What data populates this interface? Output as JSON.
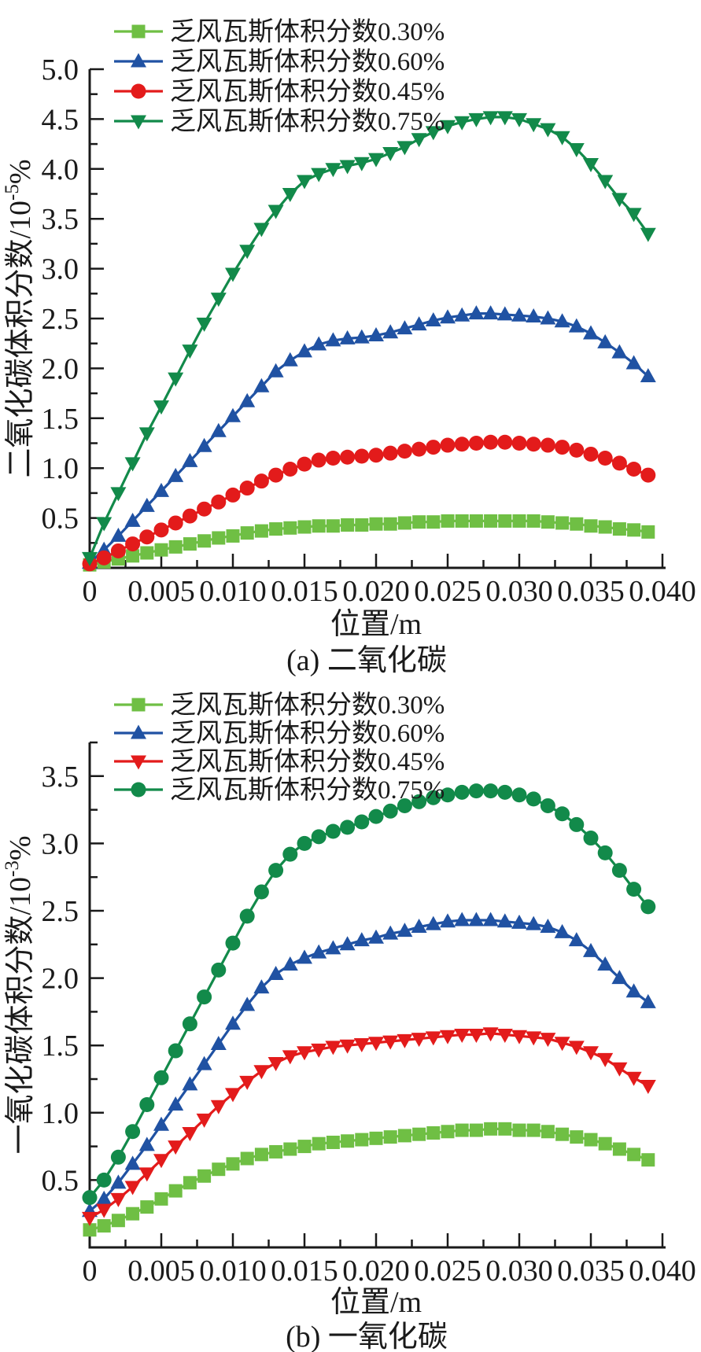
{
  "figure": {
    "background": "#ffffff",
    "text_color": "#1a1a1a"
  },
  "chart_data": [
    {
      "id": "a",
      "type": "line",
      "caption": "(a) 二氧化碳",
      "xlabel": "位置/m",
      "ylabel": "二氧化碳体积分数/10⁻⁵%",
      "ylabel_parts": {
        "base": "二氧化碳体积分数/10",
        "sup": "-5",
        "tail": "%"
      },
      "x_range": [
        0,
        0.04
      ],
      "y_range": [
        0,
        5.0
      ],
      "x_major_ticks": [
        0,
        0.005,
        0.01,
        0.015,
        0.02,
        0.025,
        0.03,
        0.035,
        0.04
      ],
      "x_tick_labels": [
        "0",
        "0.005",
        "0.010",
        "0.015",
        "0.020",
        "0.025",
        "0.030",
        "0.035",
        "0.040"
      ],
      "x_minor_step": 0.0025,
      "y_major_ticks": [
        0.5,
        1.0,
        1.5,
        2.0,
        2.5,
        3.0,
        3.5,
        4.0,
        4.5,
        5.0
      ],
      "y_tick_labels": [
        "0.5",
        "1.0",
        "1.5",
        "2.0",
        "2.5",
        "3.0",
        "3.5",
        "4.0",
        "4.5",
        "5.0"
      ],
      "y_minor_step": 0.25,
      "grid": false,
      "legend_position": "top-left-inside",
      "x_start": 0,
      "x_step": 0.001,
      "series": [
        {
          "name": "乏风瓦斯体积分数0.30%",
          "marker": "square",
          "color": "#6fbf44",
          "values": [
            0.03,
            0.06,
            0.09,
            0.12,
            0.15,
            0.18,
            0.21,
            0.24,
            0.27,
            0.3,
            0.32,
            0.35,
            0.37,
            0.39,
            0.4,
            0.41,
            0.42,
            0.42,
            0.43,
            0.43,
            0.44,
            0.44,
            0.45,
            0.46,
            0.46,
            0.47,
            0.47,
            0.47,
            0.47,
            0.47,
            0.47,
            0.47,
            0.46,
            0.45,
            0.44,
            0.42,
            0.41,
            0.39,
            0.38,
            0.36
          ]
        },
        {
          "name": "乏风瓦斯体积分数0.60%",
          "marker": "triangle-up",
          "color": "#2052a3",
          "values": [
            0.05,
            0.18,
            0.32,
            0.47,
            0.62,
            0.77,
            0.92,
            1.07,
            1.22,
            1.37,
            1.52,
            1.67,
            1.82,
            1.97,
            2.08,
            2.17,
            2.24,
            2.28,
            2.3,
            2.31,
            2.33,
            2.36,
            2.4,
            2.44,
            2.48,
            2.51,
            2.53,
            2.55,
            2.55,
            2.54,
            2.53,
            2.52,
            2.5,
            2.47,
            2.42,
            2.35,
            2.26,
            2.16,
            2.05,
            1.92
          ]
        },
        {
          "name": "乏风瓦斯体积分数0.45%",
          "marker": "circle",
          "color": "#e31b1b",
          "values": [
            0.04,
            0.1,
            0.17,
            0.24,
            0.31,
            0.38,
            0.45,
            0.52,
            0.59,
            0.66,
            0.73,
            0.8,
            0.87,
            0.93,
            0.99,
            1.04,
            1.08,
            1.1,
            1.11,
            1.12,
            1.13,
            1.15,
            1.17,
            1.19,
            1.21,
            1.23,
            1.24,
            1.25,
            1.26,
            1.26,
            1.25,
            1.24,
            1.23,
            1.21,
            1.18,
            1.14,
            1.1,
            1.05,
            0.99,
            0.93
          ]
        },
        {
          "name": "乏风瓦斯体积分数0.75%",
          "marker": "triangle-down",
          "color": "#128a4a",
          "values": [
            0.1,
            0.45,
            0.75,
            1.05,
            1.35,
            1.62,
            1.9,
            2.18,
            2.45,
            2.7,
            2.95,
            3.18,
            3.4,
            3.58,
            3.75,
            3.88,
            3.95,
            4.0,
            4.03,
            4.06,
            4.1,
            4.16,
            4.22,
            4.3,
            4.37,
            4.43,
            4.47,
            4.5,
            4.52,
            4.52,
            4.5,
            4.45,
            4.4,
            4.32,
            4.2,
            4.05,
            3.88,
            3.7,
            3.55,
            3.35
          ]
        }
      ]
    },
    {
      "id": "b",
      "type": "line",
      "caption": "(b) 一氧化碳",
      "xlabel": "位置/m",
      "ylabel": "一氧化碳体积分数/10⁻³%",
      "ylabel_parts": {
        "base": "一氧化碳体积分数/10",
        "sup": "-3",
        "tail": "%"
      },
      "x_range": [
        0,
        0.04
      ],
      "y_range": [
        0,
        3.75
      ],
      "x_major_ticks": [
        0,
        0.005,
        0.01,
        0.015,
        0.02,
        0.025,
        0.03,
        0.035,
        0.04
      ],
      "x_tick_labels": [
        "0",
        "0.005",
        "0.010",
        "0.015",
        "0.020",
        "0.025",
        "0.030",
        "0.035",
        "0.040"
      ],
      "x_minor_step": 0.0025,
      "y_major_ticks": [
        0.5,
        1.0,
        1.5,
        2.0,
        2.5,
        3.0,
        3.5
      ],
      "y_tick_labels": [
        "0.5",
        "1.0",
        "1.5",
        "2.0",
        "2.5",
        "3.0",
        "3.5"
      ],
      "y_minor_step": 0.25,
      "grid": false,
      "legend_position": "top-left-inside",
      "x_start": 0,
      "x_step": 0.001,
      "series": [
        {
          "name": "乏风瓦斯体积分数0.30%",
          "marker": "square",
          "color": "#6fbf44",
          "values": [
            0.13,
            0.16,
            0.2,
            0.25,
            0.3,
            0.36,
            0.42,
            0.48,
            0.53,
            0.58,
            0.62,
            0.66,
            0.69,
            0.71,
            0.73,
            0.75,
            0.77,
            0.78,
            0.79,
            0.8,
            0.81,
            0.82,
            0.83,
            0.84,
            0.85,
            0.86,
            0.87,
            0.87,
            0.88,
            0.88,
            0.87,
            0.87,
            0.86,
            0.84,
            0.82,
            0.8,
            0.77,
            0.73,
            0.69,
            0.65
          ]
        },
        {
          "name": "乏风瓦斯体积分数0.60%",
          "marker": "triangle-up",
          "color": "#2052a3",
          "values": [
            0.27,
            0.36,
            0.48,
            0.62,
            0.76,
            0.91,
            1.06,
            1.21,
            1.36,
            1.51,
            1.66,
            1.8,
            1.93,
            2.03,
            2.1,
            2.15,
            2.19,
            2.22,
            2.25,
            2.28,
            2.3,
            2.33,
            2.35,
            2.38,
            2.4,
            2.42,
            2.43,
            2.43,
            2.43,
            2.42,
            2.41,
            2.4,
            2.38,
            2.34,
            2.28,
            2.2,
            2.1,
            2.0,
            1.9,
            1.82
          ]
        },
        {
          "name": "乏风瓦斯体积分数0.45%",
          "marker": "triangle-down",
          "color": "#e31b1b",
          "values": [
            0.22,
            0.28,
            0.36,
            0.45,
            0.55,
            0.65,
            0.75,
            0.85,
            0.95,
            1.05,
            1.14,
            1.23,
            1.31,
            1.37,
            1.42,
            1.45,
            1.47,
            1.49,
            1.5,
            1.51,
            1.52,
            1.53,
            1.54,
            1.55,
            1.56,
            1.57,
            1.58,
            1.58,
            1.59,
            1.58,
            1.57,
            1.56,
            1.55,
            1.52,
            1.49,
            1.45,
            1.4,
            1.33,
            1.26,
            1.2
          ]
        },
        {
          "name": "乏风瓦斯体积分数0.75%",
          "marker": "circle",
          "color": "#128a4a",
          "values": [
            0.37,
            0.5,
            0.67,
            0.86,
            1.06,
            1.26,
            1.46,
            1.66,
            1.86,
            2.06,
            2.26,
            2.46,
            2.64,
            2.8,
            2.92,
            3.0,
            3.05,
            3.09,
            3.12,
            3.16,
            3.2,
            3.24,
            3.28,
            3.31,
            3.34,
            3.36,
            3.38,
            3.39,
            3.39,
            3.38,
            3.36,
            3.33,
            3.28,
            3.22,
            3.14,
            3.04,
            2.93,
            2.8,
            2.66,
            2.53
          ]
        }
      ]
    }
  ]
}
